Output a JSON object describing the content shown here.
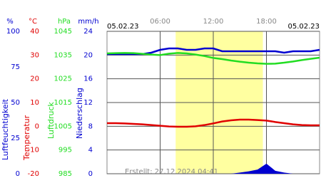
{
  "chart_data": {
    "type": "line",
    "date_left": "05.02.23",
    "date_right": "05.02.23",
    "footnote": "Erstellt: 27.12.2024 04:41",
    "x": [
      0,
      1,
      2,
      3,
      4,
      5,
      6,
      7,
      8,
      9,
      10,
      11,
      12,
      13,
      14,
      15,
      16,
      17,
      18,
      19,
      20,
      21,
      22,
      23,
      24
    ],
    "xlim": [
      0,
      24
    ],
    "xticks": [
      {
        "value": 6,
        "label": "06:00"
      },
      {
        "value": 12,
        "label": "12:00"
      },
      {
        "value": 18,
        "label": "18:00"
      }
    ],
    "daylight": [
      7.75,
      17.6
    ],
    "grid": true,
    "axes": [
      {
        "unit": "%",
        "label": "Luftfeuchtigkeit",
        "color": "#0000d0",
        "kind": "line",
        "ylim": [
          0,
          100
        ],
        "yticks": [
          0,
          25,
          50,
          75,
          100
        ],
        "values": [
          84,
          84,
          84,
          84,
          84,
          85,
          87,
          88,
          88,
          87,
          87,
          88,
          88,
          86,
          86,
          86,
          86,
          86,
          86,
          86,
          85,
          86,
          86,
          86,
          87
        ]
      },
      {
        "unit": "°C",
        "label": "Temperatur",
        "color": "#e00000",
        "kind": "line",
        "ylim": [
          -20,
          40
        ],
        "yticks": [
          -20,
          -10,
          0,
          10,
          20,
          30,
          40
        ],
        "values": [
          1.3,
          1.3,
          1.2,
          1.0,
          0.8,
          0.5,
          0.2,
          -0.1,
          -0.2,
          -0.2,
          0.0,
          0.5,
          1.2,
          2.0,
          2.5,
          2.8,
          2.8,
          2.6,
          2.4,
          1.8,
          1.3,
          0.8,
          0.5,
          0.4,
          0.4
        ]
      },
      {
        "unit": "hPa",
        "label": "Luftdruck",
        "color": "#22dd22",
        "kind": "line",
        "ylim": [
          985,
          1045
        ],
        "yticks": [
          985,
          995,
          1005,
          1015,
          1025,
          1035,
          1045
        ],
        "values": [
          1035.7,
          1035.8,
          1035.9,
          1035.8,
          1035.5,
          1035.2,
          1035.0,
          1035.6,
          1035.9,
          1035.7,
          1035.2,
          1034.6,
          1033.8,
          1033.3,
          1032.7,
          1032.2,
          1031.8,
          1031.5,
          1031.3,
          1031.4,
          1031.8,
          1032.3,
          1032.9,
          1033.4,
          1033.9
        ]
      },
      {
        "unit": "mm/h",
        "label": "Niederschlag",
        "color": "#0000d0",
        "kind": "area",
        "ylim": [
          0,
          24
        ],
        "yticks": [
          0,
          4,
          8,
          12,
          16,
          20,
          24
        ],
        "values": [
          0,
          0,
          0,
          0,
          0,
          0,
          0,
          0,
          0,
          0,
          0,
          0,
          0,
          0,
          0,
          0.2,
          0.4,
          0.7,
          1.7,
          0.5,
          0.2,
          0,
          0,
          0,
          0
        ]
      }
    ]
  }
}
